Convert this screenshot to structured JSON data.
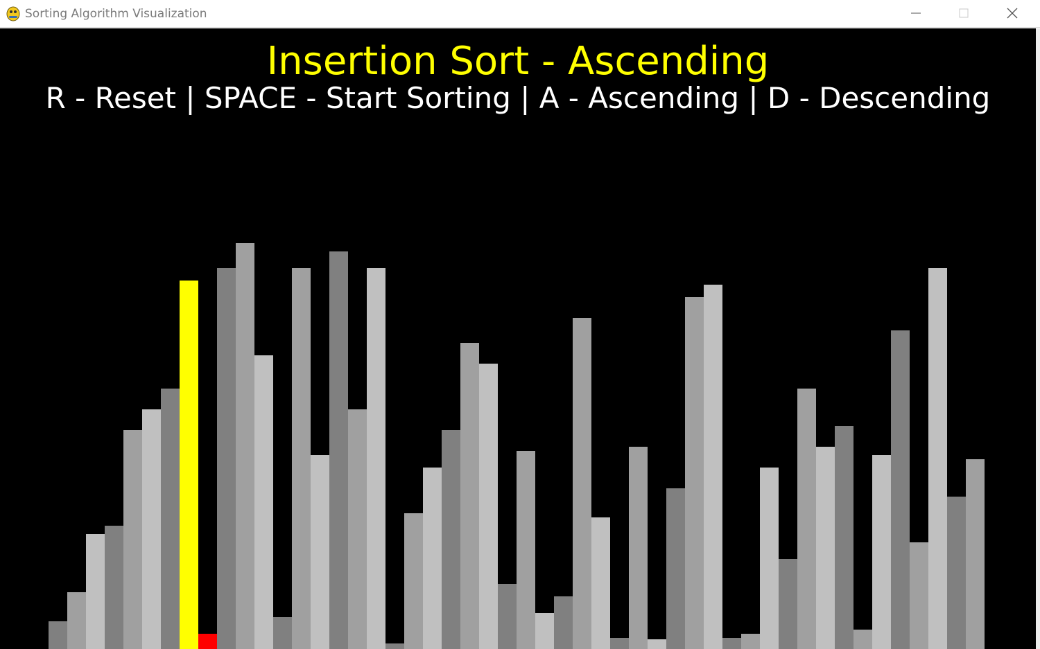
{
  "window": {
    "title": "Sorting Algorithm Visualization",
    "icon": "python-icon"
  },
  "heading": "Insertion Sort - Ascending",
  "controls": "R - Reset | SPACE - Start Sorting | A - Ascending | D - Descending",
  "colors": {
    "background": "#000000",
    "heading": "#ffff00",
    "controls": "#ffffff",
    "current": "#ffff00",
    "compare": "#ff0000",
    "shades": [
      "#808080",
      "#a0a0a0",
      "#c0c0c0"
    ]
  },
  "chart_data": {
    "type": "bar",
    "values": [
      32,
      74,
      158,
      170,
      308,
      338,
      368,
      524,
      14,
      542,
      578,
      416,
      38,
      542,
      272,
      566,
      338,
      542,
      0,
      188,
      254,
      308,
      434,
      404,
      86,
      278,
      44,
      68,
      470,
      182,
      8,
      284,
      6,
      224,
      500,
      518,
      8,
      14,
      254,
      122,
      368,
      284,
      314,
      20,
      272,
      452,
      146,
      542,
      212,
      266
    ],
    "highlight": {
      "current_index": 7,
      "compare_index": 8
    }
  }
}
